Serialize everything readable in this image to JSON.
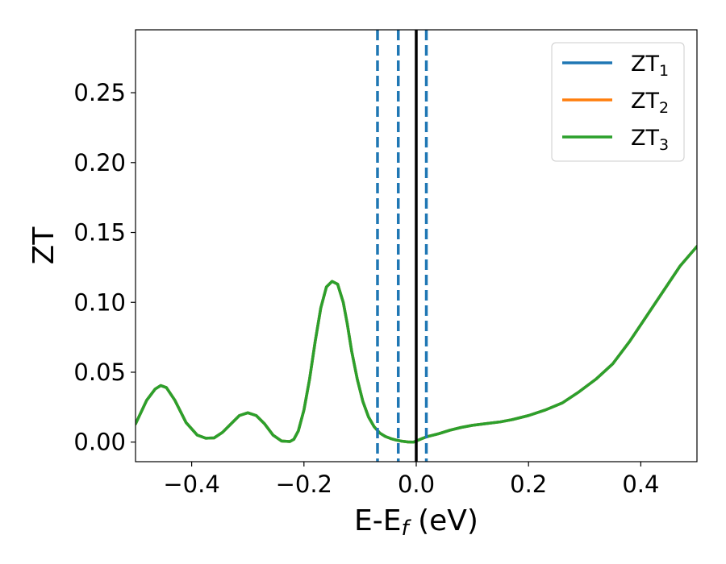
{
  "chart_data": {
    "type": "line",
    "title": "",
    "xlabel": {
      "main": "E-E",
      "sub": "f",
      "suffix": " (eV)"
    },
    "ylabel": "ZT",
    "xlim": [
      -0.5,
      0.5
    ],
    "ylim": [
      -0.014,
      0.295
    ],
    "x_ticks": [
      -0.4,
      -0.2,
      0.0,
      0.2,
      0.4
    ],
    "x_tick_labels": [
      "−0.4",
      "−0.2",
      "0.0",
      "0.2",
      "0.4"
    ],
    "y_ticks": [
      0.0,
      0.05,
      0.1,
      0.15,
      0.2,
      0.25
    ],
    "y_tick_labels": [
      "0.00",
      "0.05",
      "0.10",
      "0.15",
      "0.20",
      "0.25"
    ],
    "grid": false,
    "legend_position": "top-right",
    "series": [
      {
        "name": "ZT",
        "name_sub": "1",
        "color": "#1f77b4",
        "x": [
          -0.5,
          -0.48,
          -0.465,
          -0.455,
          -0.445,
          -0.43,
          -0.41,
          -0.39,
          -0.375,
          -0.36,
          -0.345,
          -0.33,
          -0.315,
          -0.3,
          -0.285,
          -0.27,
          -0.255,
          -0.24,
          -0.225,
          -0.218,
          -0.21,
          -0.2,
          -0.19,
          -0.18,
          -0.17,
          -0.16,
          -0.15,
          -0.14,
          -0.13,
          -0.123,
          -0.115,
          -0.105,
          -0.095,
          -0.085,
          -0.075,
          -0.065,
          -0.055,
          -0.045,
          -0.035,
          -0.025,
          -0.015,
          -0.005,
          0.0,
          0.01,
          0.02,
          0.04,
          0.06,
          0.08,
          0.1,
          0.12,
          0.15,
          0.17,
          0.2,
          0.23,
          0.26,
          0.29,
          0.32,
          0.35,
          0.38,
          0.41,
          0.44,
          0.47,
          0.5
        ],
        "values": [
          0.013,
          0.03,
          0.038,
          0.0405,
          0.039,
          0.03,
          0.014,
          0.005,
          0.0028,
          0.003,
          0.007,
          0.013,
          0.019,
          0.021,
          0.019,
          0.013,
          0.005,
          0.0008,
          0.0004,
          0.002,
          0.008,
          0.023,
          0.045,
          0.072,
          0.096,
          0.111,
          0.115,
          0.113,
          0.1,
          0.085,
          0.065,
          0.045,
          0.029,
          0.018,
          0.011,
          0.0065,
          0.004,
          0.0025,
          0.0014,
          0.0006,
          0.0001,
          0.0,
          0.0008,
          0.0025,
          0.004,
          0.006,
          0.0085,
          0.0105,
          0.012,
          0.013,
          0.0145,
          0.016,
          0.019,
          0.023,
          0.028,
          0.036,
          0.045,
          0.056,
          0.072,
          0.09,
          0.108,
          0.126,
          0.14
        ]
      },
      {
        "name": "ZT",
        "name_sub": "2",
        "color": "#ff7f0e",
        "x": [
          -0.5,
          -0.48,
          -0.465,
          -0.455,
          -0.445,
          -0.43,
          -0.41,
          -0.39,
          -0.375,
          -0.36,
          -0.345,
          -0.33,
          -0.315,
          -0.3,
          -0.285,
          -0.27,
          -0.255,
          -0.24,
          -0.225,
          -0.218,
          -0.21,
          -0.2,
          -0.19,
          -0.18,
          -0.17,
          -0.16,
          -0.15,
          -0.14,
          -0.13,
          -0.123,
          -0.115,
          -0.105,
          -0.095,
          -0.085,
          -0.075,
          -0.065,
          -0.055,
          -0.045,
          -0.035,
          -0.025,
          -0.015,
          -0.005,
          0.0,
          0.01,
          0.02,
          0.04,
          0.06,
          0.08,
          0.1,
          0.12,
          0.15,
          0.17,
          0.2,
          0.23,
          0.26,
          0.29,
          0.32,
          0.35,
          0.38,
          0.41,
          0.44,
          0.47,
          0.5
        ],
        "values": [
          0.013,
          0.03,
          0.038,
          0.0405,
          0.039,
          0.03,
          0.014,
          0.005,
          0.0028,
          0.003,
          0.007,
          0.013,
          0.019,
          0.021,
          0.019,
          0.013,
          0.005,
          0.0008,
          0.0004,
          0.002,
          0.008,
          0.023,
          0.045,
          0.072,
          0.096,
          0.111,
          0.115,
          0.113,
          0.1,
          0.085,
          0.065,
          0.045,
          0.029,
          0.018,
          0.011,
          0.0065,
          0.004,
          0.0025,
          0.0014,
          0.0006,
          0.0001,
          0.0,
          0.0008,
          0.0025,
          0.004,
          0.006,
          0.0085,
          0.0105,
          0.012,
          0.013,
          0.0145,
          0.016,
          0.019,
          0.023,
          0.028,
          0.036,
          0.045,
          0.056,
          0.072,
          0.09,
          0.108,
          0.126,
          0.14
        ]
      },
      {
        "name": "ZT",
        "name_sub": "3",
        "color": "#2ca02c",
        "x": [
          -0.5,
          -0.48,
          -0.465,
          -0.455,
          -0.445,
          -0.43,
          -0.41,
          -0.39,
          -0.375,
          -0.36,
          -0.345,
          -0.33,
          -0.315,
          -0.3,
          -0.285,
          -0.27,
          -0.255,
          -0.24,
          -0.225,
          -0.218,
          -0.21,
          -0.2,
          -0.19,
          -0.18,
          -0.17,
          -0.16,
          -0.15,
          -0.14,
          -0.13,
          -0.123,
          -0.115,
          -0.105,
          -0.095,
          -0.085,
          -0.075,
          -0.065,
          -0.055,
          -0.045,
          -0.035,
          -0.025,
          -0.015,
          -0.005,
          0.0,
          0.01,
          0.02,
          0.04,
          0.06,
          0.08,
          0.1,
          0.12,
          0.15,
          0.17,
          0.2,
          0.23,
          0.26,
          0.29,
          0.32,
          0.35,
          0.38,
          0.41,
          0.44,
          0.47,
          0.5
        ],
        "values": [
          0.013,
          0.03,
          0.038,
          0.0405,
          0.039,
          0.03,
          0.014,
          0.005,
          0.0028,
          0.003,
          0.007,
          0.013,
          0.019,
          0.021,
          0.019,
          0.013,
          0.005,
          0.0008,
          0.0004,
          0.002,
          0.008,
          0.023,
          0.045,
          0.072,
          0.096,
          0.111,
          0.115,
          0.113,
          0.1,
          0.085,
          0.065,
          0.045,
          0.029,
          0.018,
          0.011,
          0.0065,
          0.004,
          0.0025,
          0.0014,
          0.0006,
          0.0001,
          0.0,
          0.0008,
          0.0025,
          0.004,
          0.006,
          0.0085,
          0.0105,
          0.012,
          0.013,
          0.0145,
          0.016,
          0.019,
          0.023,
          0.028,
          0.036,
          0.045,
          0.056,
          0.072,
          0.09,
          0.108,
          0.126,
          0.14
        ]
      }
    ],
    "vertical_lines": [
      {
        "x": -0.069,
        "style": "dashed",
        "color": "#1f77b4"
      },
      {
        "x": -0.032,
        "style": "dashed",
        "color": "#1f77b4"
      },
      {
        "x": 0.018,
        "style": "dashed",
        "color": "#1f77b4"
      },
      {
        "x": 0.0,
        "style": "solid",
        "color": "#000000"
      }
    ]
  }
}
